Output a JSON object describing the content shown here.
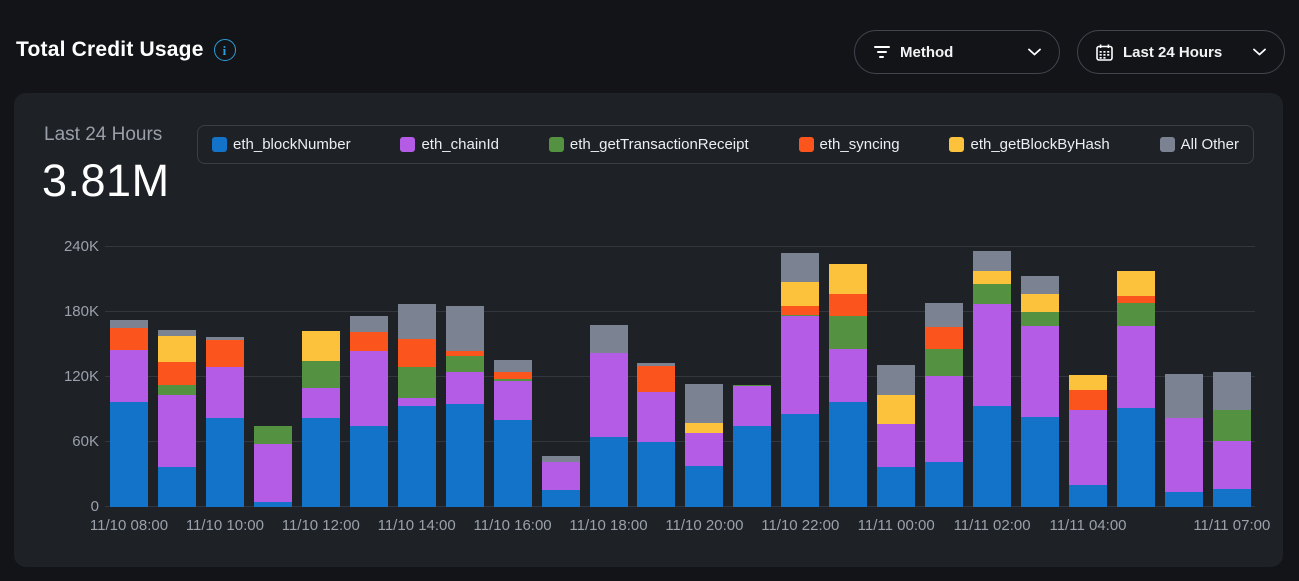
{
  "header": {
    "title": "Total Credit Usage",
    "method_filter": {
      "label": "Method"
    },
    "time_filter": {
      "label": "Last 24 Hours"
    }
  },
  "card": {
    "period_label": "Last 24 Hours",
    "total_value": "3.81M"
  },
  "colors": {
    "accent_info": "#2d9cdb",
    "page_bg": "#121417",
    "card_bg": "#1e2126",
    "grid": "#33373d",
    "axis_text": "#9aa1ab"
  },
  "chart_data": {
    "type": "bar",
    "stacked": true,
    "n_bars": 24,
    "value_unit": "credits (values in thousands, K)",
    "ylim_k": [
      0,
      240
    ],
    "y_ticks": [
      "0",
      "60K",
      "120K",
      "180K",
      "240K"
    ],
    "grid": "horizontal",
    "legend_position": "top",
    "x_ticks": [
      {
        "bar": 0,
        "label": "11/10 08:00"
      },
      {
        "bar": 2,
        "label": "11/10 10:00"
      },
      {
        "bar": 4,
        "label": "11/10 12:00"
      },
      {
        "bar": 6,
        "label": "11/10 14:00"
      },
      {
        "bar": 8,
        "label": "11/10 16:00"
      },
      {
        "bar": 10,
        "label": "11/10 18:00"
      },
      {
        "bar": 12,
        "label": "11/10 20:00"
      },
      {
        "bar": 14,
        "label": "11/10 22:00"
      },
      {
        "bar": 16,
        "label": "11/11 00:00"
      },
      {
        "bar": 18,
        "label": "11/11 02:00"
      },
      {
        "bar": 20,
        "label": "11/11 04:00"
      },
      {
        "bar": 23,
        "label": "11/11 07:00"
      }
    ],
    "series": [
      {
        "name": "eth_blockNumber",
        "color": "#1273c9",
        "values_k": [
          96.5,
          36.5,
          82.5,
          4.5,
          82.5,
          75,
          93,
          95,
          80.5,
          15.5,
          64.5,
          60,
          37.5,
          74.5,
          85.5,
          96.5,
          37,
          41.5,
          93.5,
          83.5,
          20,
          91,
          14,
          16.5
        ]
      },
      {
        "name": "eth_chainId",
        "color": "#b55ce6",
        "values_k": [
          48,
          66.5,
          47,
          53.5,
          27.5,
          69,
          7.5,
          30,
          35.5,
          26,
          78,
          46,
          31,
          37,
          90.5,
          49,
          40,
          79.5,
          94,
          83.5,
          70,
          76,
          68,
          44
        ]
      },
      {
        "name": "eth_getTransactionReceipt",
        "color": "#549140",
        "values_k": [
          0,
          10,
          0,
          16.5,
          25,
          0,
          29,
          14,
          2,
          0,
          0,
          0,
          0,
          1,
          1,
          30.5,
          0,
          24.5,
          18.5,
          13,
          0,
          21,
          0,
          29.5
        ]
      },
      {
        "name": "eth_syncing",
        "color": "#fb551d",
        "values_k": [
          21,
          20.5,
          24.5,
          0,
          0,
          17.5,
          25.5,
          5,
          6.5,
          0,
          0,
          24.5,
          0,
          0,
          9,
          21,
          0,
          21,
          0,
          0,
          18,
          6.5,
          0,
          0
        ]
      },
      {
        "name": "eth_getBlockByHash",
        "color": "#fcc23c",
        "values_k": [
          0,
          24,
          0,
          0,
          27.5,
          0,
          0,
          0,
          0,
          0,
          0,
          0,
          9,
          0,
          22,
          27.5,
          26.5,
          0,
          12,
          17,
          13.5,
          23.5,
          0,
          0
        ]
      },
      {
        "name": "All Other",
        "color": "#7b8393",
        "values_k": [
          7.5,
          5.5,
          3,
          0,
          0,
          15,
          32,
          42,
          11.5,
          6,
          25.5,
          2,
          36.5,
          0,
          26.5,
          0,
          27.5,
          22,
          18.5,
          16,
          0,
          0,
          40.5,
          34.5
        ]
      }
    ]
  }
}
